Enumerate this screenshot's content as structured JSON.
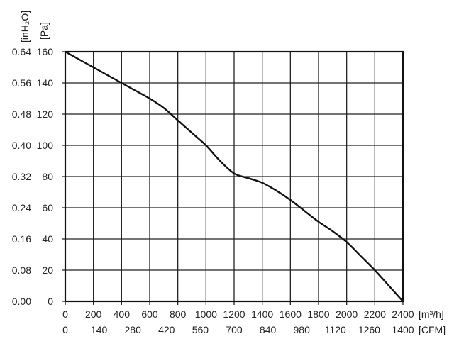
{
  "chart_data": {
    "type": "line",
    "title": "",
    "grid": true,
    "x": [
      0,
      100,
      200,
      300,
      400,
      500,
      600,
      700,
      800,
      900,
      1000,
      1100,
      1200,
      1300,
      1400,
      1500,
      1600,
      1700,
      1800,
      1900,
      2000,
      2100,
      2200,
      2300,
      2400
    ],
    "series": [
      {
        "values": [
          160,
          155,
          150,
          145,
          140,
          135,
          130,
          124,
          116,
          108,
          100,
          90,
          82,
          79,
          76,
          71,
          65,
          58,
          51,
          45,
          38,
          29,
          20,
          10,
          0
        ]
      }
    ],
    "xlim": [
      0,
      2400
    ],
    "ylim": [
      0,
      160
    ],
    "x_axis_primary": {
      "unit_label": "[m³/h]",
      "ticks": [
        "0",
        "200",
        "400",
        "600",
        "800",
        "1000",
        "1200",
        "1400",
        "1600",
        "1800",
        "2000",
        "2200",
        "2400"
      ]
    },
    "x_axis_secondary": {
      "unit_label": "[CFM]",
      "ticks": [
        "0",
        "140",
        "280",
        "420",
        "560",
        "700",
        "840",
        "980",
        "1120",
        "1260",
        "1400"
      ]
    },
    "y_axis_primary": {
      "unit_label": "[Pa]",
      "ticks": [
        "0",
        "20",
        "40",
        "60",
        "80",
        "100",
        "120",
        "140",
        "160"
      ]
    },
    "y_axis_secondary": {
      "unit_label": "[inH₂O]",
      "ticks": [
        "0.00",
        "0.08",
        "0.16",
        "0.24",
        "0.32",
        "0.40",
        "0.48",
        "0.56",
        "0.64"
      ]
    },
    "colors": {
      "curve": "#111111",
      "grid": "#222222",
      "frame": "#111111"
    }
  }
}
